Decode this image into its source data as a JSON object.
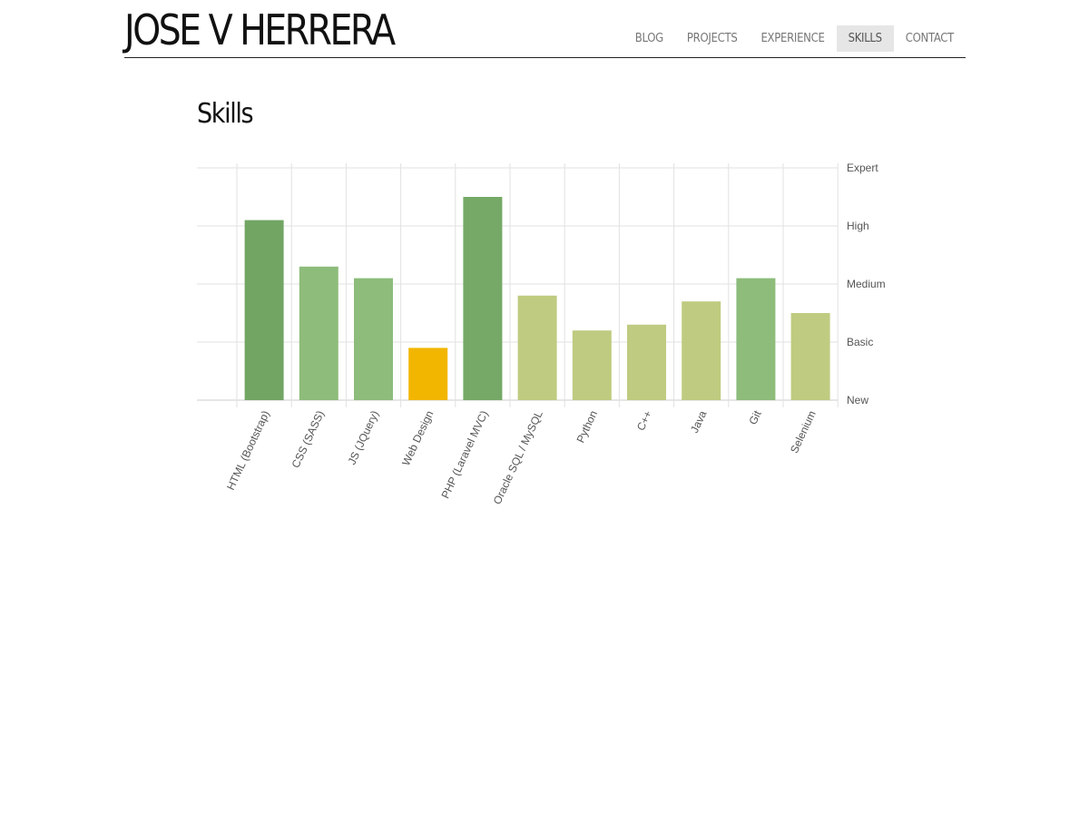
{
  "header": {
    "site_title": "JOSE V HERRERA",
    "nav": [
      {
        "label": "BLOG",
        "active": false
      },
      {
        "label": "PROJECTS",
        "active": false
      },
      {
        "label": "EXPERIENCE",
        "active": false
      },
      {
        "label": "SKILLS",
        "active": true
      },
      {
        "label": "CONTACT",
        "active": false
      }
    ]
  },
  "main": {
    "heading": "Skills"
  },
  "chart_data": {
    "type": "bar",
    "title": "",
    "xlabel": "",
    "ylabel": "",
    "y_levels": [
      "New",
      "Basic",
      "Medium",
      "High",
      "Expert"
    ],
    "ylim": [
      0,
      4
    ],
    "y_axis_side": "right",
    "grid": true,
    "categories": [
      "HTML (Bootstrap)",
      "CSS (SASS)",
      "JS (JQuery)",
      "Web Design",
      "PHP (Laravel MVC)",
      "Oracle SQL / MySQL",
      "Python",
      "C++",
      "Java",
      "Git",
      "Selenium"
    ],
    "values": [
      3.1,
      2.3,
      2.1,
      0.9,
      3.5,
      1.8,
      1.2,
      1.3,
      1.7,
      2.1,
      1.5
    ],
    "colors": [
      "#72a564",
      "#8dbc7b",
      "#8dbc7b",
      "#f2b600",
      "#76a967",
      "#bfcb80",
      "#bfcb80",
      "#bfcb80",
      "#bfcb80",
      "#8dbc7b",
      "#bfcb80"
    ]
  }
}
